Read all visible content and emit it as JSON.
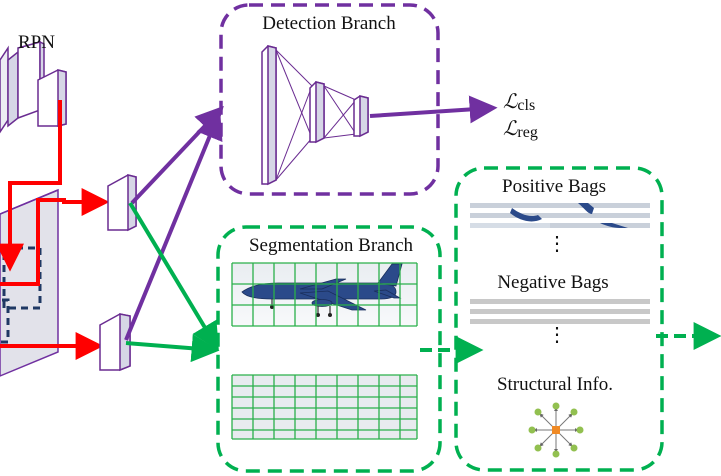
{
  "labels": {
    "rpn": "RPN",
    "detection_branch": "Detection Branch",
    "segmentation_branch": "Segmentation Branch",
    "positive_bags": "Positive Bags",
    "negative_bags": "Negative Bags",
    "structural_info": "Structural Info.",
    "ellipsis_1": "⋮",
    "ellipsis_2": "⋮"
  },
  "losses": {
    "cls": {
      "symbol": "ℒ",
      "subscript": "cls"
    },
    "reg": {
      "symbol": "ℒ",
      "subscript": "reg"
    }
  },
  "colors": {
    "purple": "#7030a0",
    "green": "#00b050",
    "red": "#ff0000",
    "grid_green": "#2ab04a",
    "block_fill": "#d6d6e6",
    "block_stroke": "#6a2c91",
    "bag_gray": "#c8c8c8",
    "node_green": "#92c050",
    "node_orange": "#f08a24"
  }
}
